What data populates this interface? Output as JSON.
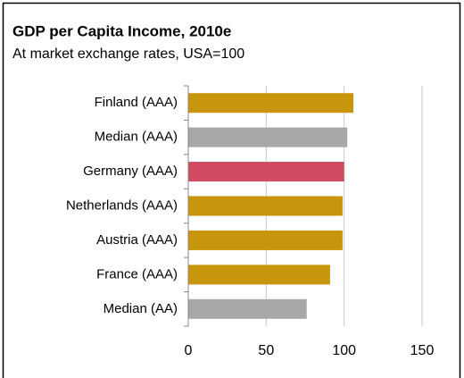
{
  "chart_data": {
    "type": "bar",
    "orientation": "horizontal",
    "title": "GDP per Capita Income, 2010e",
    "subtitle": "At market exchange rates, USA=100",
    "categories": [
      "Finland (AAA)",
      "Median (AAA)",
      "Germany (AAA)",
      "Netherlands (AAA)",
      "Austria (AAA)",
      "France (AAA)",
      "Median (AA)"
    ],
    "values": [
      106,
      102,
      100,
      99,
      99,
      91,
      76
    ],
    "colors": [
      "#c8960c",
      "#a6a8aa",
      "#d04a62",
      "#c8960c",
      "#c8960c",
      "#c8960c",
      "#a6a8aa"
    ],
    "xlim": [
      0,
      150
    ],
    "xticks": [
      0,
      50,
      100,
      150
    ],
    "grid": true
  }
}
